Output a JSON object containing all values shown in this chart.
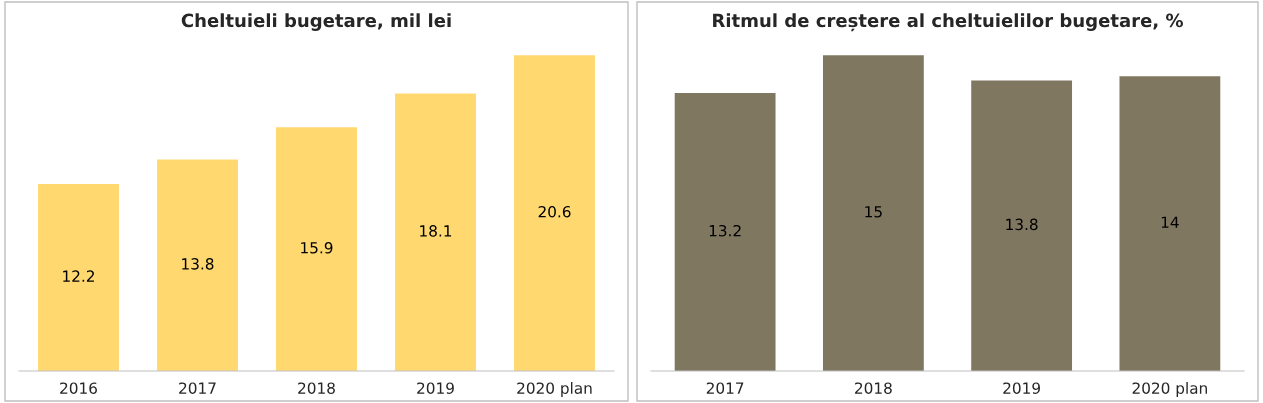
{
  "chart_data": [
    {
      "type": "bar",
      "title": "Cheltuieli bugetare, mil lei",
      "categories": [
        "2016",
        "2017",
        "2018",
        "2019",
        "2020 plan"
      ],
      "values": [
        12.2,
        13.8,
        15.9,
        18.1,
        20.6
      ],
      "color": "#ffd970",
      "data_labels": true
    },
    {
      "type": "bar",
      "title": "Ritmul de creștere al cheltuielilor bugetare, %",
      "categories": [
        "2017",
        "2018",
        "2019",
        "2020 plan"
      ],
      "values": [
        13.2,
        15,
        13.8,
        14
      ],
      "color": "#7f7760",
      "data_labels": true
    }
  ]
}
